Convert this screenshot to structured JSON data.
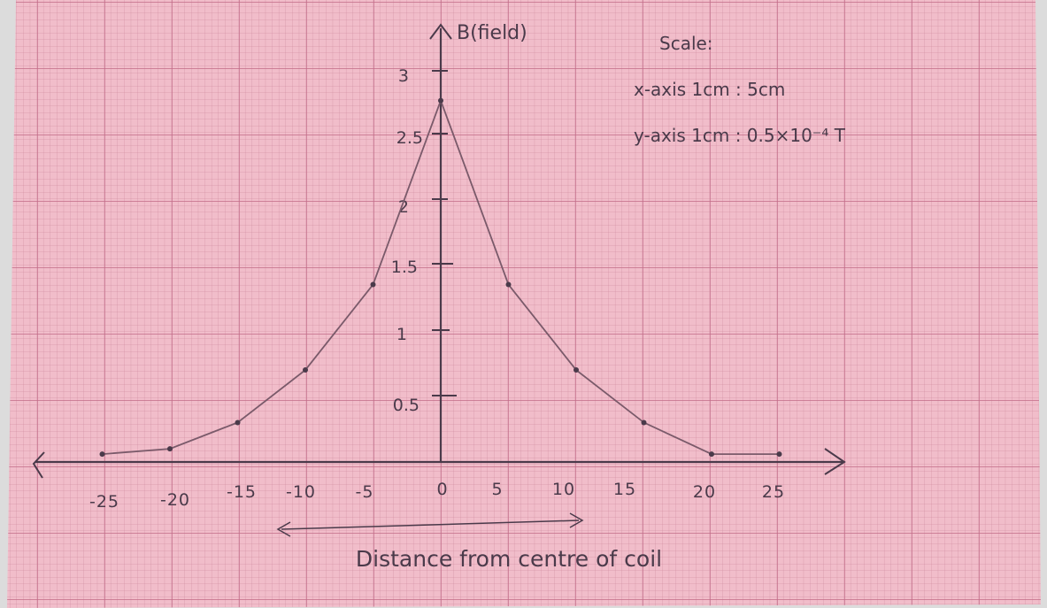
{
  "chart_data": {
    "type": "line",
    "title": "",
    "ylabel": "B(field)",
    "xlabel": "Distance from centre of coil",
    "scale": {
      "heading": "Scale:",
      "x": "x-axis 1cm : 5cm",
      "y": "y-axis 1cm : 0.5×10⁻⁴ T"
    },
    "xlim": [
      -25,
      25
    ],
    "ylim": [
      0,
      3
    ],
    "x_tick_labels": [
      "-25",
      "-20",
      "-15",
      "-10",
      "-5",
      "0",
      "5",
      "10",
      "15",
      "20",
      "25"
    ],
    "y_tick_labels": [
      "0.5",
      "1",
      "1.5",
      "2",
      "2.5",
      "3"
    ],
    "series": [
      {
        "x": [
          -25,
          -20,
          -15,
          -10,
          -5,
          0,
          5,
          10,
          15,
          20,
          25
        ],
        "y": [
          0.06,
          0.1,
          0.3,
          0.7,
          1.35,
          2.75,
          1.35,
          0.7,
          0.3,
          0.06,
          0.06
        ],
        "color": "#7a5a6a"
      }
    ],
    "grid": true
  }
}
